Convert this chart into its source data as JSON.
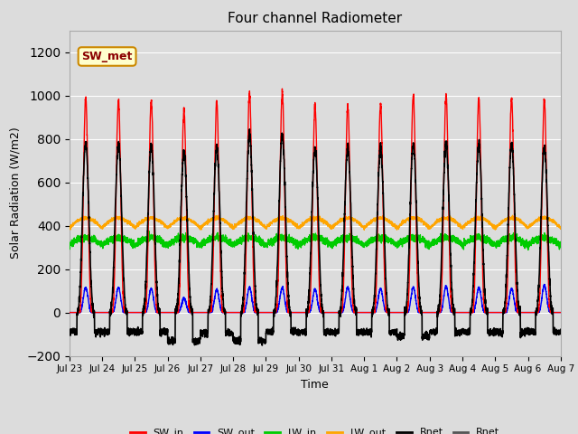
{
  "title": "Four channel Radiometer",
  "xlabel": "Time",
  "ylabel": "Solar Radiation (W/m2)",
  "ylim": [
    -200,
    1300
  ],
  "yticks": [
    -200,
    0,
    200,
    400,
    600,
    800,
    1000,
    1200
  ],
  "date_labels": [
    "Jul 23",
    "Jul 24",
    "Jul 25",
    "Jul 26",
    "Jul 27",
    "Jul 28",
    "Jul 29",
    "Jul 30",
    "Jul 31",
    "Aug 1",
    "Aug 2",
    "Aug 3",
    "Aug 4",
    "Aug 5",
    "Aug 6",
    "Aug 7"
  ],
  "n_days": 15,
  "SW_in_peak": [
    990,
    980,
    975,
    930,
    970,
    1010,
    1015,
    945,
    950,
    960,
    1000,
    1005,
    990,
    990,
    980
  ],
  "SW_out_peak": [
    115,
    115,
    110,
    65,
    105,
    115,
    115,
    105,
    115,
    110,
    115,
    120,
    115,
    110,
    125
  ],
  "Rnet_peak": [
    775,
    775,
    770,
    740,
    760,
    820,
    820,
    755,
    760,
    760,
    775,
    775,
    775,
    775,
    760
  ],
  "Rnet_night": [
    -90,
    -90,
    -90,
    -130,
    -95,
    -130,
    -90,
    -90,
    -90,
    -90,
    -110,
    -90,
    -90,
    -90,
    -90
  ],
  "LW_out_base": 390,
  "LW_out_day_bump": 45,
  "LW_in_base": 310,
  "LW_in_day_bump": 35,
  "colors": {
    "SW_in": "#ff0000",
    "SW_out": "#0000ff",
    "LW_in": "#00cc00",
    "LW_out": "#ffa500",
    "Rnet": "#000000",
    "Rnet2": "#555555"
  },
  "annotation_text": "SW_met",
  "background_color": "#dcdcdc",
  "plot_bg_color": "#dcdcdc"
}
